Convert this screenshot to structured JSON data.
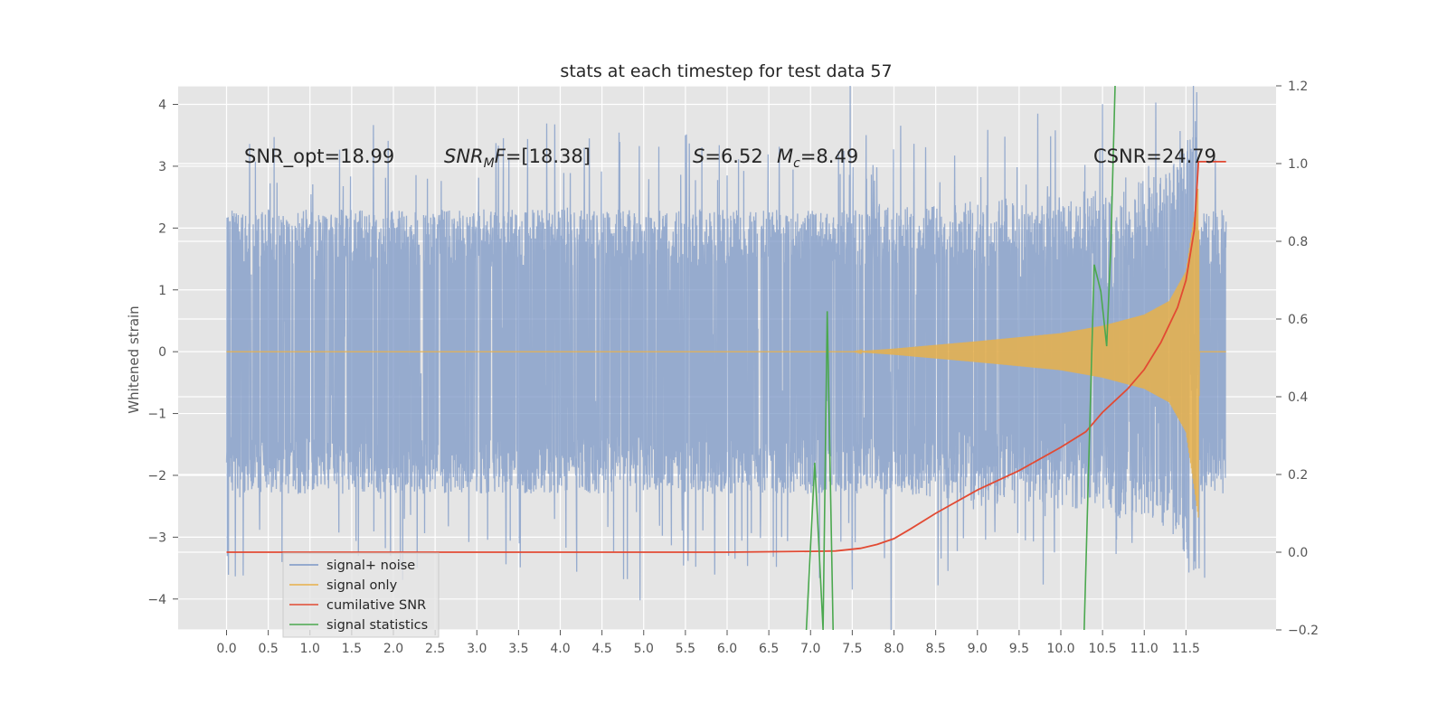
{
  "chart_data": {
    "type": "line",
    "title": "stats at each timestep for test data 57",
    "xlabel": "",
    "ylabel": "Whitened strain",
    "xlim": [
      -0.58,
      12.58
    ],
    "ylim": [
      -4.5,
      4.3
    ],
    "y2lim": [
      -0.2,
      1.2
    ],
    "xticks": [
      "0.0",
      "0.5",
      "1.0",
      "1.5",
      "2.0",
      "2.5",
      "3.0",
      "3.5",
      "4.0",
      "4.5",
      "5.0",
      "5.5",
      "6.0",
      "6.5",
      "7.0",
      "7.5",
      "8.0",
      "8.5",
      "9.0",
      "9.5",
      "10.0",
      "10.5",
      "11.0",
      "11.5"
    ],
    "yticks": [
      "−4",
      "−3",
      "−2",
      "−1",
      "0",
      "1",
      "2",
      "3",
      "4"
    ],
    "y2ticks": [
      "−0.2",
      "0.0",
      "0.2",
      "0.4",
      "0.6",
      "0.8",
      "1.0",
      "1.2"
    ],
    "grid": true,
    "legend_position": "lower-left",
    "colors": {
      "signal_noise": "#7b97c6",
      "signal_only": "#e8b04a",
      "cumulative_snr": "#e24a33",
      "signal_statistics": "#4ba84f",
      "axes_bg": "#e5e5e5",
      "grid": "#ffffff"
    },
    "annotations": {
      "snr_opt": "SNR_opt=18.99",
      "snr_mf_main": "SNR",
      "snr_mf_sub": "M",
      "snr_mf_rest": "F=[18.38]",
      "s_main": "S",
      "s_rest": "=6.52",
      "mc_main": "M",
      "mc_sub": "c",
      "mc_rest": "=8.49",
      "csnr": "CSNR=24.79"
    },
    "series": [
      {
        "name": "signal+ noise",
        "axis": "left",
        "description": "whitened strain, Gaussian noise envelope about ±2.3 with spikes to about ±3.7",
        "x_range": [
          0.0,
          11.98
        ],
        "envelope": 2.3
      },
      {
        "name": "signal only",
        "axis": "left",
        "description": "chirp waveform growing near merger",
        "x": [
          0.0,
          7.5,
          8.0,
          9.0,
          10.0,
          10.5,
          11.0,
          11.3,
          11.5,
          11.6,
          11.65,
          11.66,
          12.0
        ],
        "amplitude": [
          0.0,
          0.0,
          0.05,
          0.17,
          0.3,
          0.42,
          0.6,
          0.82,
          1.3,
          2.2,
          2.7,
          0.0,
          0.0
        ]
      },
      {
        "name": "cumilative SNR",
        "axis": "right",
        "x": [
          0.0,
          2.0,
          4.0,
          6.0,
          7.0,
          7.3,
          7.6,
          7.8,
          8.0,
          8.2,
          8.5,
          9.0,
          9.5,
          10.0,
          10.3,
          10.5,
          10.8,
          11.0,
          11.2,
          11.4,
          11.5,
          11.6,
          11.65,
          11.98
        ],
        "values": [
          0.0,
          0.0,
          0.0,
          0.0,
          0.002,
          0.003,
          0.01,
          0.02,
          0.035,
          0.06,
          0.1,
          0.16,
          0.21,
          0.27,
          0.31,
          0.36,
          0.42,
          0.47,
          0.54,
          0.63,
          0.7,
          0.83,
          1.005,
          1.005
        ]
      },
      {
        "name": "signal statistics",
        "axis": "right",
        "x": [
          6.95,
          7.05,
          7.15,
          7.2,
          7.27,
          10.28,
          10.4,
          10.48,
          10.55,
          10.6,
          10.65
        ],
        "values": [
          -0.2,
          0.23,
          -0.2,
          0.62,
          -0.2,
          -0.2,
          0.74,
          0.67,
          0.53,
          0.79,
          1.2
        ]
      }
    ]
  },
  "legend": {
    "items": [
      "signal+ noise",
      "signal only",
      "cumilative SNR",
      "signal statistics"
    ]
  }
}
